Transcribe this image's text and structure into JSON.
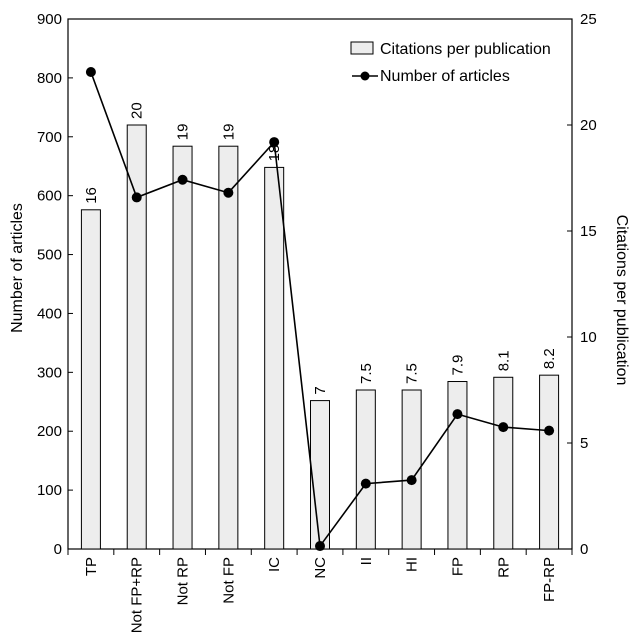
{
  "chart_data": {
    "type": "bar",
    "categories": [
      "TP",
      "Not FP+RP",
      "Not RP",
      "Not FP",
      "IC",
      "NC",
      "II",
      "HI",
      "FP",
      "RP",
      "FP-RP"
    ],
    "series": [
      {
        "name": "Citations per publication",
        "type": "bar",
        "axis": "right",
        "values": [
          16,
          20,
          19,
          19,
          18,
          7,
          7.5,
          7.5,
          7.9,
          8.1,
          8.2
        ],
        "data_labels": [
          "16",
          "20",
          "19",
          "19",
          "18",
          "7",
          "7.5",
          "7.5",
          "7.9",
          "8.1",
          "8.2"
        ]
      },
      {
        "name": "Number of articles",
        "type": "line",
        "axis": "left",
        "values": [
          810,
          597,
          627,
          605,
          691,
          5,
          111,
          117,
          229,
          207,
          201
        ]
      }
    ],
    "ylabel": "Number of articles",
    "y2label": "Citations per publication",
    "ylim": [
      0,
      900
    ],
    "y2lim": [
      0,
      25
    ],
    "yticks": [
      "0",
      "100",
      "200",
      "300",
      "400",
      "500",
      "600",
      "700",
      "800",
      "900"
    ],
    "y2ticks": [
      "0",
      "5",
      "10",
      "15",
      "20",
      "25"
    ],
    "legend_position": "top-right",
    "colors": {
      "bar_fill": "#ededed",
      "bar_stroke": "#000000",
      "line": "#000000",
      "marker": "#000000"
    }
  }
}
